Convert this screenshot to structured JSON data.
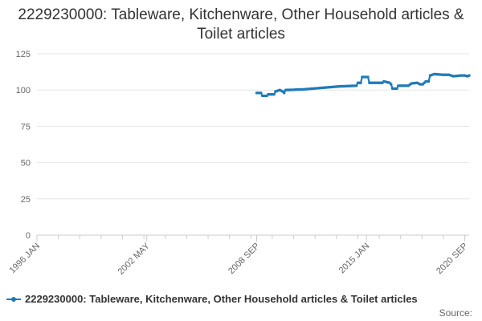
{
  "chart_data": {
    "type": "line",
    "title": "2229230000: Tableware, Kitchenware, Other Household articles & Toilet articles",
    "xlabel": "",
    "ylabel": "",
    "ylim": [
      0,
      125
    ],
    "yticks": [
      "0",
      "25",
      "50",
      "75",
      "100",
      "125"
    ],
    "xlim": [
      "1996-01",
      "2020-12"
    ],
    "xticks": [
      {
        "label": "1996 JAN",
        "date": "1996-01"
      },
      {
        "label": "2002 MAY",
        "date": "2002-05"
      },
      {
        "label": "2008 SEP",
        "date": "2008-09"
      },
      {
        "label": "2015 JAN",
        "date": "2015-01"
      },
      {
        "label": "2020 SEP",
        "date": "2020-09"
      }
    ],
    "grid": true,
    "legend_position": "bottom",
    "series": [
      {
        "name": "2229230000: Tableware, Kitchenware, Other Household articles & Toilet articles",
        "color": "#1f7ab8",
        "points": [
          [
            "2008-09",
            98
          ],
          [
            "2008-12",
            98
          ],
          [
            "2009-01",
            96
          ],
          [
            "2009-04",
            96
          ],
          [
            "2009-05",
            97
          ],
          [
            "2009-09",
            97
          ],
          [
            "2009-10",
            99
          ],
          [
            "2010-01",
            100
          ],
          [
            "2010-03",
            99
          ],
          [
            "2010-04",
            98
          ],
          [
            "2010-05",
            100
          ],
          [
            "2011-06",
            100.5
          ],
          [
            "2012-06",
            101.5
          ],
          [
            "2013-06",
            102.5
          ],
          [
            "2014-06",
            103
          ],
          [
            "2014-07",
            105
          ],
          [
            "2014-09",
            105
          ],
          [
            "2014-10",
            109
          ],
          [
            "2015-02",
            109
          ],
          [
            "2015-03",
            105
          ],
          [
            "2015-12",
            105
          ],
          [
            "2016-01",
            106
          ],
          [
            "2016-05",
            105
          ],
          [
            "2016-06",
            104
          ],
          [
            "2016-07",
            101
          ],
          [
            "2016-10",
            101
          ],
          [
            "2016-11",
            103
          ],
          [
            "2017-06",
            103
          ],
          [
            "2017-08",
            104.5
          ],
          [
            "2017-12",
            105
          ],
          [
            "2018-02",
            104
          ],
          [
            "2018-04",
            104
          ],
          [
            "2018-06",
            106
          ],
          [
            "2018-08",
            106
          ],
          [
            "2018-09",
            110
          ],
          [
            "2018-12",
            111
          ],
          [
            "2019-06",
            110.5
          ],
          [
            "2019-10",
            110.5
          ],
          [
            "2020-01",
            109.5
          ],
          [
            "2020-06",
            110
          ],
          [
            "2020-09",
            110
          ],
          [
            "2020-11",
            109.5
          ],
          [
            "2020-12",
            110
          ]
        ]
      }
    ]
  },
  "legend": {
    "label": "2229230000: Tableware, Kitchenware, Other Household articles & Toilet articles"
  },
  "source": {
    "label": "Source:"
  }
}
